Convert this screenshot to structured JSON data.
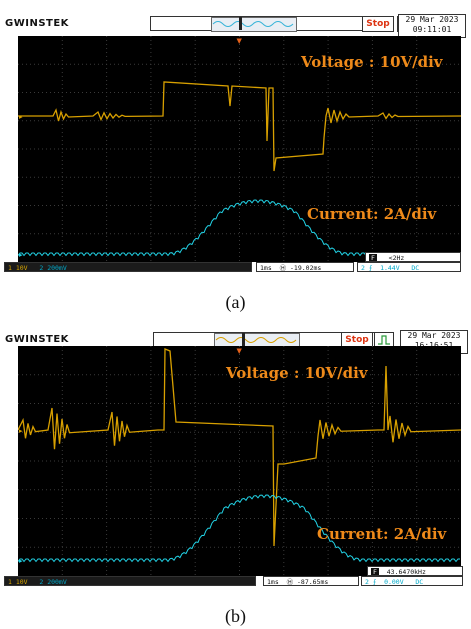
{
  "panels": [
    {
      "brand": "GWINSTEK",
      "stop_label": "Stop",
      "date_line1": "29 Mar 2023",
      "date_line2": "09:11:01",
      "voltage_label": "Voltage : 10V/div",
      "current_label": "Current:  2A/div",
      "ch1_scale": "10V",
      "ch2_scale": "200mV",
      "timebase": "1ms",
      "trigger_delay": "-19.02ms",
      "freq_readout": "<2Hz",
      "trigger_level": "1.44V",
      "coupling": "DC",
      "caption": "(a)",
      "colors": {
        "voltage": "#d8a000",
        "current": "#22d3e6",
        "label": "#ee8a1a"
      }
    },
    {
      "brand": "GWINSTEK",
      "stop_label": "Stop",
      "date_line1": "29 Mar 2023",
      "date_line2": "16:16:51",
      "voltage_label": "Voltage : 10V/div",
      "current_label": "Current:  2A/div",
      "ch1_scale": "10V",
      "ch2_scale": "200mV",
      "timebase": "1ms",
      "trigger_delay": "-87.65ms",
      "freq_readout": "43.6470kHz",
      "trigger_level": "0.00V",
      "coupling": "DC",
      "caption": "(b)",
      "colors": {
        "voltage": "#d8a000",
        "current": "#22d3e6",
        "label": "#ee8a1a"
      }
    }
  ]
}
